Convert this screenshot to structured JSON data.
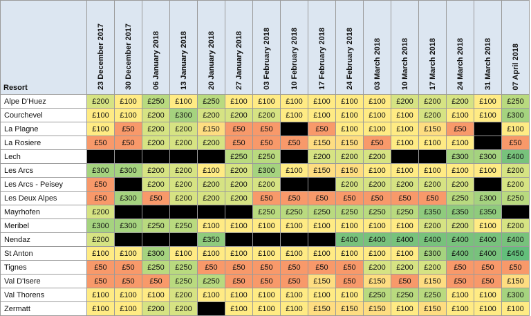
{
  "chart_data": {
    "type": "table",
    "corner_label": "Resort",
    "columns": [
      "23 December 2017",
      "30 December 2017",
      "06 January 2018",
      "13 January 2018",
      "20 January 2018",
      "27 January 2018",
      "03 February 2018",
      "10 February 2018",
      "17 February 2018",
      "24 February 2018",
      "03 March 2018",
      "10 March 2018",
      "17 March 2018",
      "24 March 2018",
      "31 March 2018",
      "07 April 2018"
    ],
    "rows": [
      {
        "resort": "Alpe D'Huez",
        "values": [
          "£200",
          "£100",
          "£250",
          "£100",
          "£250",
          "£100",
          "£100",
          "£100",
          "£100",
          "£100",
          "£100",
          "£200",
          "£200",
          "£200",
          "£100",
          "£250"
        ]
      },
      {
        "resort": "Courchevel",
        "values": [
          "£100",
          "£100",
          "£200",
          "£300",
          "£200",
          "£200",
          "£200",
          "£100",
          "£100",
          "£100",
          "£100",
          "£100",
          "£200",
          "£100",
          "£100",
          "£300"
        ]
      },
      {
        "resort": "La Plagne",
        "values": [
          "£100",
          "£50",
          "£200",
          "£200",
          "£150",
          "£50",
          "£50",
          null,
          "£50",
          "£100",
          "£100",
          "£100",
          "£150",
          "£50",
          null,
          "£100"
        ]
      },
      {
        "resort": "La Rosiere",
        "values": [
          "£50",
          "£50",
          "£200",
          "£200",
          "£200",
          "£50",
          "£50",
          "£50",
          "£150",
          "£150",
          "£50",
          "£100",
          "£100",
          "£100",
          null,
          "£50"
        ]
      },
      {
        "resort": "Lech",
        "values": [
          null,
          null,
          null,
          null,
          null,
          "£250",
          "£250",
          null,
          "£200",
          "£200",
          "£200",
          null,
          null,
          "£300",
          "£300",
          "£400"
        ]
      },
      {
        "resort": "Les Arcs",
        "values": [
          "£300",
          "£300",
          "£200",
          "£200",
          "£100",
          "£200",
          "£300",
          "£100",
          "£150",
          "£150",
          "£100",
          "£100",
          "£100",
          "£100",
          "£100",
          "£200"
        ]
      },
      {
        "resort": "Les Arcs - Peisey",
        "values": [
          "£50",
          null,
          "£200",
          "£200",
          "£200",
          "£200",
          "£200",
          null,
          null,
          "£200",
          "£200",
          "£200",
          "£200",
          "£200",
          null,
          "£200"
        ]
      },
      {
        "resort": "Les Deux Alpes",
        "values": [
          "£50",
          "£300",
          "£50",
          "£200",
          "£200",
          "£200",
          "£50",
          "£50",
          "£50",
          "£50",
          "£50",
          "£50",
          "£50",
          "£250",
          "£300",
          "£250"
        ]
      },
      {
        "resort": "Mayrhofen",
        "values": [
          "£200",
          null,
          null,
          null,
          null,
          null,
          "£250",
          "£250",
          "£250",
          "£250",
          "£250",
          "£250",
          "£350",
          "£350",
          "£350",
          null
        ]
      },
      {
        "resort": "Meribel",
        "values": [
          "£300",
          "£300",
          "£250",
          "£250",
          "£100",
          "£100",
          "£100",
          "£100",
          "£100",
          "£100",
          "£100",
          "£100",
          "£200",
          "£200",
          "£100",
          "£200"
        ]
      },
      {
        "resort": "Nendaz",
        "values": [
          "£200",
          null,
          null,
          null,
          "£350",
          null,
          null,
          null,
          null,
          "£400",
          "£400",
          "£400",
          "£400",
          "£400",
          "£400",
          "£400"
        ]
      },
      {
        "resort": "St Anton",
        "values": [
          "£100",
          "£100",
          "£300",
          "£100",
          "£100",
          "£100",
          "£100",
          "£100",
          "£100",
          "£100",
          "£100",
          "£100",
          "£300",
          "£400",
          "£400",
          "£450"
        ]
      },
      {
        "resort": "Tignes",
        "values": [
          "£50",
          "£50",
          "£250",
          "£250",
          "£50",
          "£50",
          "£50",
          "£50",
          "£50",
          "£50",
          "£200",
          "£200",
          "£200",
          "£50",
          "£50",
          "£50"
        ]
      },
      {
        "resort": "Val D'Isere",
        "values": [
          "£50",
          "£50",
          "£50",
          "£250",
          "£250",
          "£50",
          "£50",
          "£50",
          "£150",
          "£50",
          "£150",
          "£50",
          "£150",
          "£50",
          "£50",
          "£150"
        ]
      },
      {
        "resort": "Val Thorens",
        "values": [
          "£100",
          "£100",
          "£100",
          "£200",
          "£100",
          "£100",
          "£100",
          "£100",
          "£100",
          "£100",
          "£250",
          "£250",
          "£250",
          "£100",
          "£100",
          "£300"
        ]
      },
      {
        "resort": "Zermatt",
        "values": [
          "£100",
          "£100",
          "£200",
          "£200",
          null,
          "£100",
          "£100",
          "£100",
          "£150",
          "£150",
          "£150",
          "£100",
          "£150",
          "£100",
          "£100",
          "£100"
        ]
      }
    ],
    "value_colors": {
      "£50": "#f8996a",
      "£100": "#ffeb84",
      "£150": "#fedd81",
      "£200": "#d6e383",
      "£250": "#b9da7f",
      "£300": "#a5d37f",
      "£350": "#8fcb7d",
      "£400": "#78c27c",
      "£450": "#63be7b",
      "unavailable": "#000000"
    }
  }
}
